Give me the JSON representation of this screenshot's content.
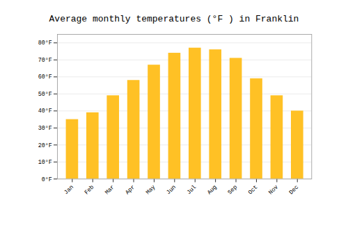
{
  "chart_data": {
    "type": "bar",
    "title": "Average monthly temperatures (°F ) in Franklin",
    "categories": [
      "Jan",
      "Feb",
      "Mar",
      "Apr",
      "May",
      "Jun",
      "Jul",
      "Aug",
      "Sep",
      "Oct",
      "Nov",
      "Dec"
    ],
    "values": [
      35,
      39,
      49,
      58,
      67,
      74,
      77,
      76,
      71,
      59,
      49,
      40
    ],
    "color": "#FFC125",
    "ylim": [
      0,
      85
    ],
    "yticks": [
      {
        "value": 0,
        "label": "0°F"
      },
      {
        "value": 10,
        "label": "10°F"
      },
      {
        "value": 20,
        "label": "20°F"
      },
      {
        "value": 30,
        "label": "30°F"
      },
      {
        "value": 40,
        "label": "40°F"
      },
      {
        "value": 50,
        "label": "50°F"
      },
      {
        "value": 60,
        "label": "60°F"
      },
      {
        "value": 70,
        "label": "70°F"
      },
      {
        "value": 80,
        "label": "80°F"
      }
    ],
    "grid": true
  }
}
